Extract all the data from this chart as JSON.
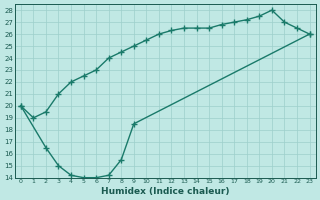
{
  "curve1_x": [
    0,
    1,
    2,
    3,
    4,
    5,
    6,
    7,
    8,
    9,
    10,
    11,
    12,
    13,
    14,
    15,
    16,
    17,
    18,
    19,
    20,
    21,
    22,
    23
  ],
  "curve1_y": [
    20,
    19,
    19.5,
    21,
    22,
    22.5,
    23,
    24,
    24.5,
    25,
    25.5,
    26,
    26.3,
    26.5,
    26.5,
    26.5,
    26.8,
    27,
    27.2,
    27.5,
    28,
    27,
    26.5,
    26
  ],
  "curve2_x": [
    0,
    2,
    3,
    4,
    5,
    6,
    7,
    8,
    9,
    23
  ],
  "curve2_y": [
    20,
    16.5,
    15,
    14.2,
    14,
    14,
    14.2,
    15.5,
    18.5,
    26
  ],
  "line_color": "#1a7a6a",
  "bg_color": "#c0e8e4",
  "grid_color": "#9dcfcb",
  "text_color": "#1a5a50",
  "xlabel": "Humidex (Indice chaleur)",
  "xlim": [
    -0.5,
    23.5
  ],
  "ylim": [
    14,
    28.5
  ],
  "yticks": [
    14,
    15,
    16,
    17,
    18,
    19,
    20,
    21,
    22,
    23,
    24,
    25,
    26,
    27,
    28
  ],
  "xticks": [
    0,
    1,
    2,
    3,
    4,
    5,
    6,
    7,
    8,
    9,
    10,
    11,
    12,
    13,
    14,
    15,
    16,
    17,
    18,
    19,
    20,
    21,
    22,
    23
  ],
  "marker": "+",
  "markersize": 4,
  "linewidth": 1.0
}
